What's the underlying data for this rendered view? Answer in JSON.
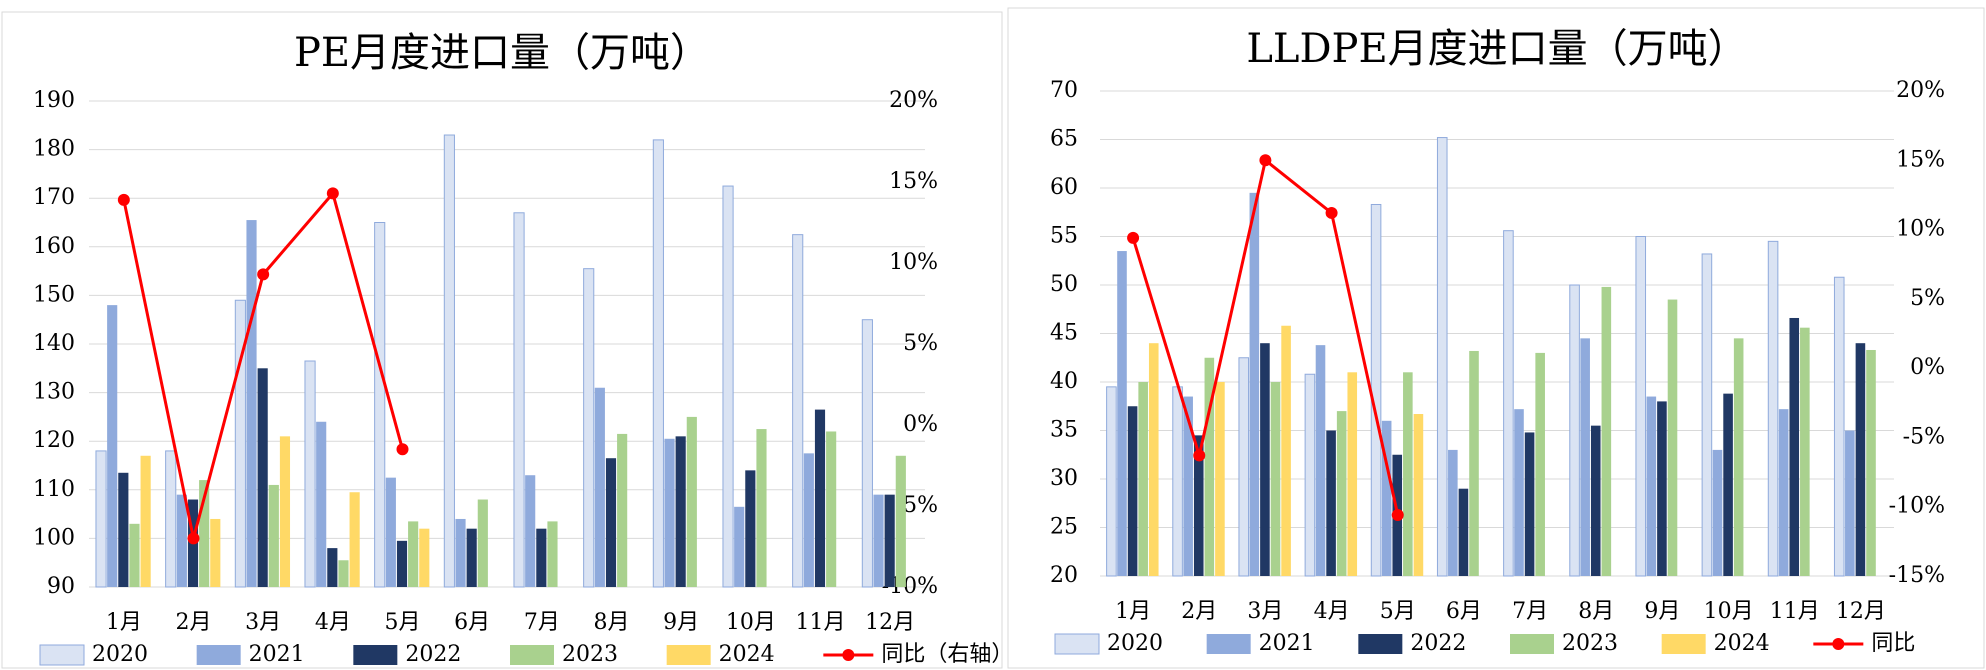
{
  "chart_data": [
    {
      "type": "bar",
      "title": "PE月度进口量（万吨）",
      "categories": [
        "1月",
        "2月",
        "3月",
        "4月",
        "5月",
        "6月",
        "7月",
        "8月",
        "9月",
        "10月",
        "11月",
        "12月"
      ],
      "series": [
        {
          "name": "2020",
          "color": "#dae3f3",
          "values": [
            118,
            118,
            149,
            136.5,
            165,
            183,
            167,
            155.5,
            182,
            172.5,
            162.5,
            145
          ]
        },
        {
          "name": "2021",
          "color": "#8faadc",
          "values": [
            148,
            109,
            165.5,
            124,
            112.5,
            104,
            113,
            131,
            120.5,
            106.5,
            117.5,
            109
          ]
        },
        {
          "name": "2022",
          "color": "#203864",
          "values": [
            113.5,
            108,
            135,
            98,
            99.5,
            102,
            102,
            116.5,
            121,
            114,
            126.5,
            109
          ]
        },
        {
          "name": "2023",
          "color": "#a9d18e",
          "values": [
            103,
            112,
            111,
            95.5,
            103.5,
            108,
            103.5,
            121.5,
            125,
            122.5,
            122,
            117
          ]
        },
        {
          "name": "2024",
          "color": "#ffd966",
          "values": [
            117,
            104,
            121,
            109.5,
            102,
            null,
            null,
            null,
            null,
            null,
            null,
            null
          ]
        },
        {
          "name": "同比（右轴）",
          "color": "#ff0000",
          "axis": "y2",
          "values": [
            13.9,
            -7.0,
            9.3,
            14.3,
            -1.5,
            null,
            null,
            null,
            null,
            null,
            null,
            null
          ]
        }
      ],
      "ylim": [
        90,
        190
      ],
      "yticks": [
        90,
        100,
        110,
        120,
        130,
        140,
        150,
        160,
        170,
        180,
        190
      ],
      "y2lim": [
        -10,
        20
      ],
      "y2ticks": [
        {
          "value": -10,
          "label": "-10%"
        },
        {
          "value": -5,
          "label": "-5%"
        },
        {
          "value": 0,
          "label": "0%"
        },
        {
          "value": 5,
          "label": "5%"
        },
        {
          "value": 10,
          "label": "10%"
        },
        {
          "value": 15,
          "label": "15%"
        },
        {
          "value": 20,
          "label": "20%"
        }
      ],
      "legend": "bottom"
    },
    {
      "type": "bar",
      "title": "LLDPE月度进口量（万吨）",
      "categories": [
        "1月",
        "2月",
        "3月",
        "4月",
        "5月",
        "6月",
        "7月",
        "8月",
        "9月",
        "10月",
        "11月",
        "12月"
      ],
      "series": [
        {
          "name": "2020",
          "color": "#dae3f3",
          "values": [
            39.5,
            39.5,
            42.5,
            40.8,
            58.3,
            65.2,
            55.6,
            50,
            55,
            53.2,
            54.5,
            50.8
          ]
        },
        {
          "name": "2021",
          "color": "#8faadc",
          "values": [
            53.5,
            38.5,
            59.5,
            43.8,
            36,
            33,
            37.2,
            44.5,
            38.5,
            33,
            37.2,
            35
          ]
        },
        {
          "name": "2022",
          "color": "#203864",
          "values": [
            37.5,
            34.5,
            44,
            35,
            32.5,
            29,
            34.8,
            35.5,
            38,
            38.8,
            46.6,
            44
          ]
        },
        {
          "name": "2023",
          "color": "#a9d18e",
          "values": [
            40,
            42.5,
            40,
            37,
            41,
            43.2,
            43,
            49.8,
            48.5,
            44.5,
            45.6,
            43.3
          ]
        },
        {
          "name": "2024",
          "color": "#ffd966",
          "values": [
            44,
            40,
            45.8,
            41,
            36.7,
            null,
            null,
            null,
            null,
            null,
            null,
            null
          ]
        },
        {
          "name": "同比",
          "color": "#ff0000",
          "axis": "y2",
          "values": [
            9.4,
            -6.3,
            15.0,
            11.2,
            -10.6,
            null,
            null,
            null,
            null,
            null,
            null,
            null
          ]
        }
      ],
      "ylim": [
        20,
        70
      ],
      "yticks": [
        20,
        25,
        30,
        35,
        40,
        45,
        50,
        55,
        60,
        65,
        70
      ],
      "y2lim": [
        -15,
        20
      ],
      "y2ticks": [
        {
          "value": -15,
          "label": "-15%"
        },
        {
          "value": -10,
          "label": "-10%"
        },
        {
          "value": -5,
          "label": "-5%"
        },
        {
          "value": 0,
          "label": "0%"
        },
        {
          "value": 5,
          "label": "5%"
        },
        {
          "value": 10,
          "label": "10%"
        },
        {
          "value": 15,
          "label": "15%"
        },
        {
          "value": 20,
          "label": "20%"
        }
      ],
      "legend": "bottom"
    }
  ]
}
